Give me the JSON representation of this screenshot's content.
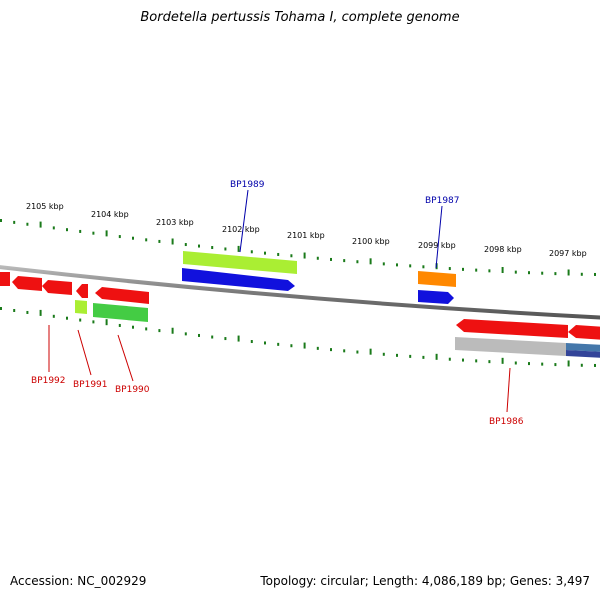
{
  "title": "Bordetella pertussis Tohama I, complete genome",
  "footer": {
    "accession": "Accession: NC_002929",
    "topology": "Topology: circular; Length: 4,086,189 bp; Genes: 3,497"
  },
  "scale_labels": [
    "2105 kbp",
    "2104 kbp",
    "2103 kbp",
    "2102 kbp",
    "2101 kbp",
    "2100 kbp",
    "2099 kbp",
    "2098 kbp",
    "2097 kbp"
  ],
  "gene_labels": [
    {
      "text": "BP1989",
      "strand": "forward",
      "color": "#0000aa"
    },
    {
      "text": "BP1987",
      "strand": "forward",
      "color": "#0000aa"
    },
    {
      "text": "BP1992",
      "strand": "reverse",
      "color": "#cc0000"
    },
    {
      "text": "BP1991",
      "strand": "reverse",
      "color": "#cc0000"
    },
    {
      "text": "BP1990",
      "strand": "reverse",
      "color": "#cc0000"
    },
    {
      "text": "BP1986",
      "strand": "reverse",
      "color": "#cc0000"
    }
  ],
  "colors": {
    "backbone": "#888888",
    "tick": "#1a7a1a",
    "forward_label": "#0000aa",
    "reverse_label": "#cc0000",
    "red_feature": "#ee1111",
    "blue_feature": "#1111dd",
    "lime_feature": "#aaee33",
    "green_feature": "#44cc44",
    "orange_feature": "#ff8800",
    "grey_feature": "#bbbbbb",
    "steel_feature": "#4477aa",
    "navy_feature": "#334499"
  }
}
